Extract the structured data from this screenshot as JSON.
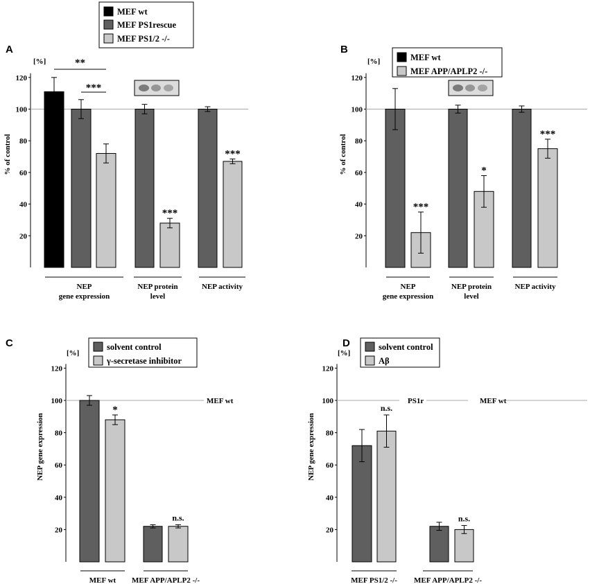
{
  "colors": {
    "MEF wt": "#000000",
    "MEF PS1rescue": "#5f5f5f",
    "MEF PS1/2 -/-": "#c8c8c8",
    "dark_series": "#5f5f5f",
    "light_series": "#c8c8c8",
    "axis": "#000000",
    "refline": "#a8a8a8"
  },
  "chart_data": [
    {
      "panel": "A",
      "type": "bar",
      "ylabel": "% of control",
      "unit": "[%]",
      "ylim": [
        0,
        120
      ],
      "yticks": [
        20,
        40,
        60,
        80,
        100,
        120
      ],
      "reference_line": 100,
      "reference_labels": [],
      "legend": [
        "MEF wt",
        "MEF PS1rescue",
        "MEF PS1/2 -/-"
      ],
      "groups": [
        {
          "label": [
            "NEP",
            "gene expression"
          ],
          "bars": [
            {
              "series": "MEF wt",
              "value": 111,
              "err": 9
            },
            {
              "series": "MEF PS1rescue",
              "value": 100,
              "err": 6,
              "sig": ""
            },
            {
              "series": "MEF PS1/2 -/-",
              "value": 72,
              "err": 6,
              "sig": ""
            }
          ]
        },
        {
          "label": [
            "NEP protein",
            "level"
          ],
          "blot": true,
          "bars": [
            {
              "series": "MEF PS1rescue",
              "value": 100,
              "err": 3
            },
            {
              "series": "MEF PS1/2 -/-",
              "value": 28,
              "err": 3,
              "sig": "***"
            }
          ]
        },
        {
          "label": [
            "NEP activity"
          ],
          "bars": [
            {
              "series": "MEF PS1rescue",
              "value": 100,
              "err": 1.5
            },
            {
              "series": "MEF PS1/2 -/-",
              "value": 67,
              "err": 1.5,
              "sig": "***"
            }
          ]
        }
      ],
      "brackets": [
        {
          "from": "MEF wt",
          "to": "MEF PS1/2 -/-",
          "label": "**"
        },
        {
          "from": "MEF PS1rescue",
          "to": "MEF PS1/2 -/-",
          "label": "***"
        }
      ]
    },
    {
      "panel": "B",
      "type": "bar",
      "ylabel": "% of control",
      "unit": "[%]",
      "ylim": [
        0,
        120
      ],
      "yticks": [
        20,
        40,
        60,
        80,
        100,
        120
      ],
      "reference_line": 100,
      "reference_labels": [],
      "legend": [
        "MEF wt",
        "MEF APP/APLP2 -/-"
      ],
      "groups": [
        {
          "label": [
            "NEP",
            "gene expression"
          ],
          "bars": [
            {
              "series": "dark",
              "value": 100,
              "err": 13
            },
            {
              "series": "light",
              "value": 22,
              "err": 13,
              "sig": "***"
            }
          ]
        },
        {
          "label": [
            "NEP protein",
            "level"
          ],
          "blot": true,
          "bars": [
            {
              "series": "dark",
              "value": 100,
              "err": 2.5
            },
            {
              "series": "light",
              "value": 48,
              "err": 10,
              "sig": "*"
            }
          ]
        },
        {
          "label": [
            "NEP activity"
          ],
          "bars": [
            {
              "series": "dark",
              "value": 100,
              "err": 2
            },
            {
              "series": "light",
              "value": 75,
              "err": 6,
              "sig": "***"
            }
          ]
        }
      ]
    },
    {
      "panel": "C",
      "type": "bar",
      "ylabel": "NEP gene expression",
      "unit": "[%]",
      "ylim": [
        0,
        120
      ],
      "yticks": [
        20,
        40,
        60,
        80,
        100,
        120
      ],
      "reference_line": 100,
      "reference_labels": [
        "MEF wt"
      ],
      "legend": [
        "solvent control",
        "γ-secretase inhibitor"
      ],
      "groups": [
        {
          "label": [
            "MEF wt"
          ],
          "bars": [
            {
              "series": "dark",
              "value": 100,
              "err": 3
            },
            {
              "series": "light",
              "value": 88,
              "err": 3,
              "sig": "*"
            }
          ]
        },
        {
          "label": [
            "MEF APP/APLP2 -/-"
          ],
          "bars": [
            {
              "series": "dark",
              "value": 22,
              "err": 1
            },
            {
              "series": "light",
              "value": 22,
              "err": 1,
              "sig": "n.s."
            }
          ]
        }
      ]
    },
    {
      "panel": "D",
      "type": "bar",
      "ylabel": "NEP gene expression",
      "unit": "[%]",
      "ylim": [
        0,
        120
      ],
      "yticks": [
        20,
        40,
        60,
        80,
        100,
        120
      ],
      "reference_line": 100,
      "reference_labels": [
        "PS1r",
        "MEF wt"
      ],
      "legend": [
        "solvent control",
        "Aβ"
      ],
      "groups": [
        {
          "label": [
            "MEF PS1/2 -/-"
          ],
          "bars": [
            {
              "series": "dark",
              "value": 72,
              "err": 10
            },
            {
              "series": "light",
              "value": 81,
              "err": 10,
              "sig": "n.s."
            }
          ]
        },
        {
          "label": [
            "MEF APP/APLP2 -/-"
          ],
          "bars": [
            {
              "series": "dark",
              "value": 22,
              "err": 2.5
            },
            {
              "series": "light",
              "value": 20,
              "err": 2.5,
              "sig": "n.s."
            }
          ]
        }
      ]
    }
  ]
}
